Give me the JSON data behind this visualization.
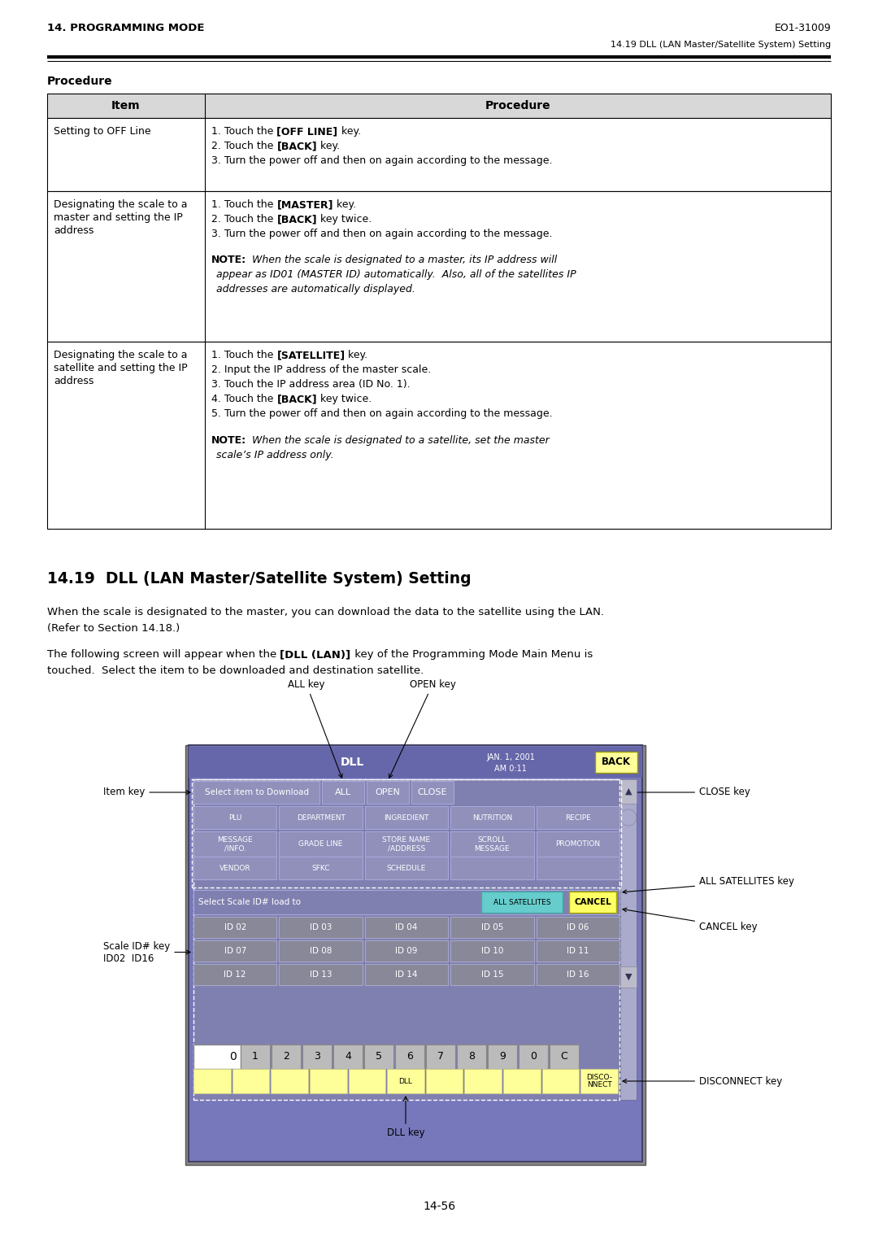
{
  "page_title_left": "14. PROGRAMMING MODE",
  "page_title_right": "EO1-31009",
  "subtitle": "14.19 DLL (LAN Master/Satellite System) Setting",
  "procedure_heading": "Procedure",
  "section_title": "14.19  DLL (LAN Master/Satellite System) Setting",
  "para1_line1": "When the scale is designated to the master, you can download the data to the satellite using the LAN.",
  "para1_line2": "(Refer to Section 14.18.)",
  "para2_line1_pre": "The following screen will appear when the ",
  "para2_line1_bold": "[DLL (LAN)]",
  "para2_line1_post": " key of the Programming Mode Main Menu is",
  "para2_line2": "touched.  Select the item to be downloaded and destination satellite.",
  "page_number": "14-56",
  "bg_color": "#ffffff",
  "screen_bg": "#7777bb",
  "screen_header_bg": "#6666aa",
  "btn_light": "#9999bb",
  "btn_dark": "#888899",
  "btn_row1_left": "#8888aa",
  "scrollbar_bg": "#aaaacc",
  "back_btn": "#ffff99",
  "all_sat_btn": "#66cccc",
  "cancel_btn": "#ffff66",
  "numpad_btn": "#bbbbbb",
  "fn_btn": "#ffff99",
  "white": "#ffffff",
  "header_line_color": "#000000"
}
